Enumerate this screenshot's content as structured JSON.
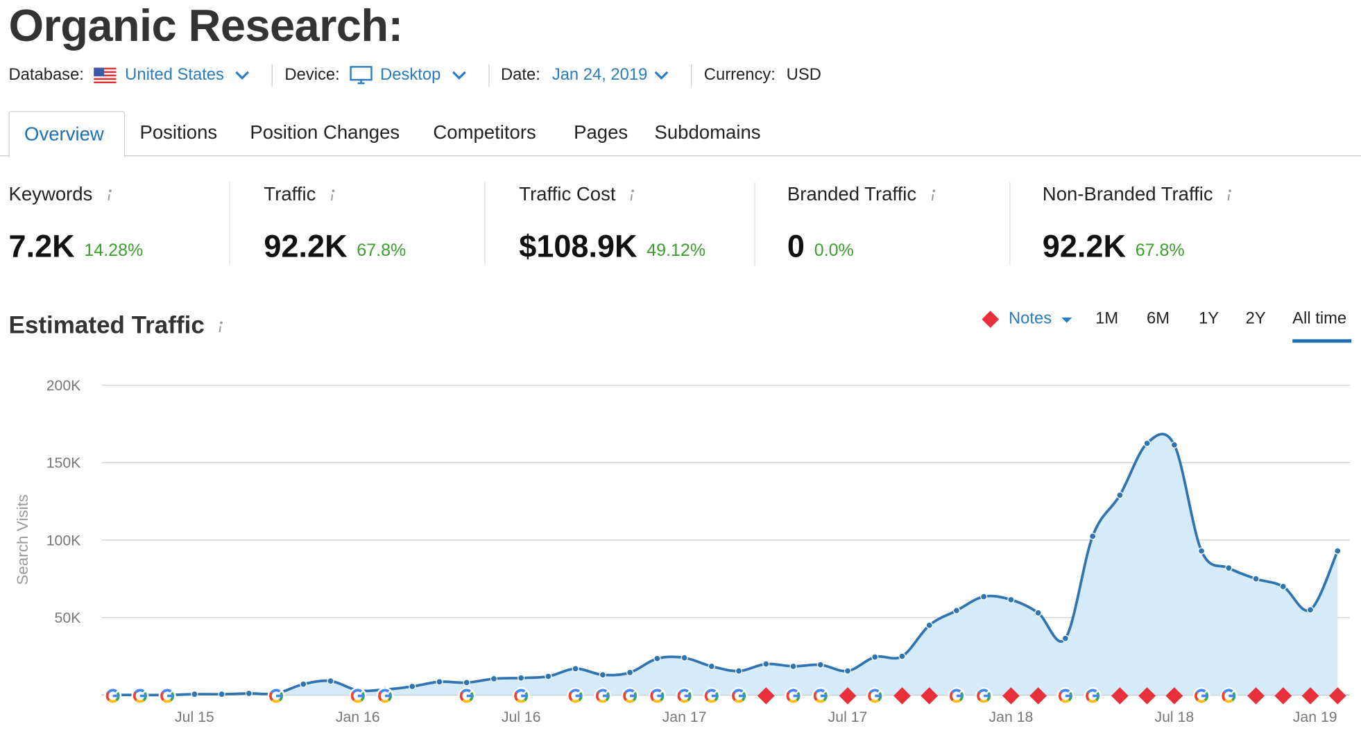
{
  "header": {
    "title": "Organic Research:"
  },
  "filters": [
    {
      "label": "Database:",
      "value": "United States"
    },
    {
      "label": "Device:",
      "value": "Desktop"
    },
    {
      "label": "Date:",
      "value": "Jan 24, 2019"
    },
    {
      "label": "Currency:",
      "value": "USD"
    }
  ],
  "tabs": [
    "Overview",
    "Positions",
    "Position Changes",
    "Competitors",
    "Pages",
    "Subdomains"
  ],
  "metrics": [
    {
      "label": "Keywords",
      "value": "7.2K",
      "change": "14.28%"
    },
    {
      "label": "Traffic",
      "value": "92.2K",
      "change": "67.8%"
    },
    {
      "label": "Traffic Cost",
      "value": "$108.9K",
      "change": "49.12%"
    },
    {
      "label": "Branded Traffic",
      "value": "0",
      "change": "0.0%"
    },
    {
      "label": "Non-Branded Traffic",
      "value": "92.2K",
      "change": "67.8%"
    }
  ],
  "chart_data": {
    "type": "line",
    "title": "Estimated Traffic",
    "y_label": "Search Visits",
    "notes_label": "Notes",
    "ranges": [
      "1M",
      "6M",
      "1Y",
      "2Y",
      "All time"
    ],
    "categories": [
      null,
      null,
      null,
      "Jul 15",
      null,
      null,
      null,
      null,
      null,
      "Jan 16",
      null,
      null,
      null,
      null,
      null,
      "Jul 16",
      null,
      null,
      null,
      null,
      null,
      "Jan 17",
      null,
      null,
      null,
      null,
      null,
      "Jul 17",
      null,
      null,
      null,
      null,
      null,
      "Jan 18",
      null,
      null,
      null,
      null,
      null,
      "Jul 18",
      null,
      null,
      null,
      null,
      null,
      "Jan 19"
    ],
    "values": [
      0,
      0,
      0,
      500,
      500,
      1000,
      1000,
      7000,
      9000,
      3000,
      3500,
      5500,
      8500,
      8000,
      10500,
      11000,
      12000,
      17000,
      13000,
      14500,
      23500,
      24000,
      18500,
      15500,
      20000,
      18500,
      19500,
      15500,
      24500,
      25000,
      45000,
      54500,
      63500,
      61500,
      53000,
      36500,
      102500,
      129000,
      162500,
      161500,
      93000,
      82000,
      75000,
      70000,
      55000,
      93000
    ],
    "color": "#2f74b0",
    "fill": "#d6ebfa",
    "ylim": [
      0,
      200000
    ],
    "yticks": [
      {
        "value": 50000,
        "label": "50K"
      },
      {
        "value": 100000,
        "label": "100K"
      },
      {
        "value": 150000,
        "label": "150K"
      },
      {
        "value": 200000,
        "label": "200K"
      }
    ],
    "grid": true
  }
}
